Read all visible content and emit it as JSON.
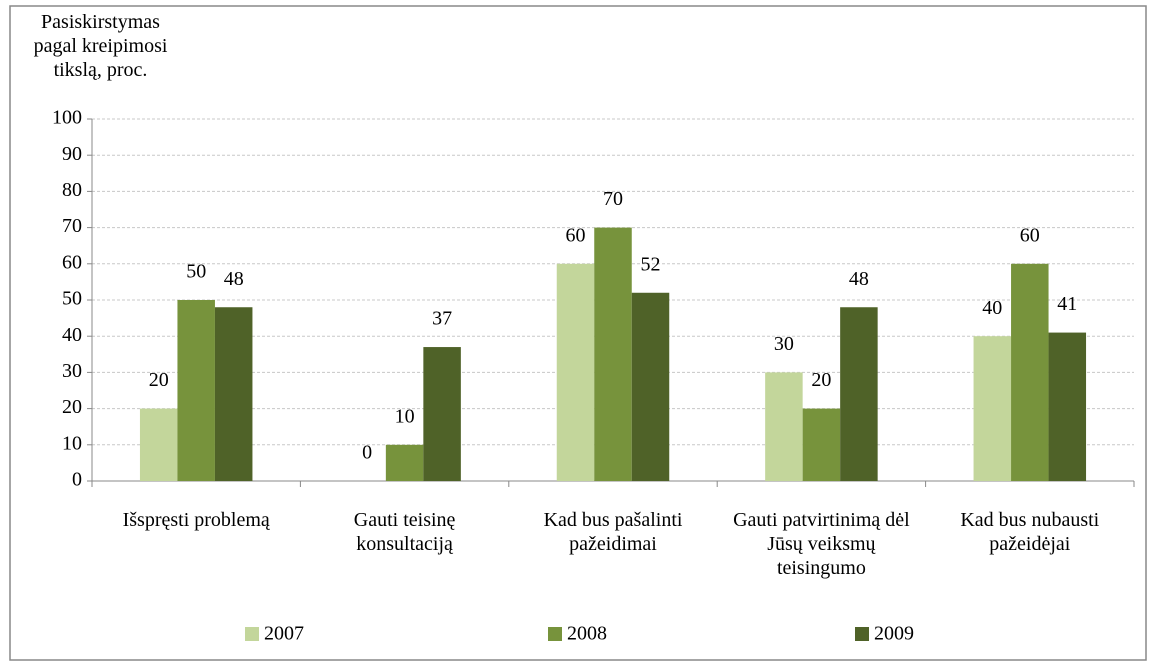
{
  "chart_data": {
    "type": "bar",
    "y_label": "Pasiskirstymas pagal kreipimosi tikslą, proc.",
    "categories": [
      "Išspręsti problemą",
      "Gauti teisinę konsultaciją",
      "Kad bus pašalinti pažeidimai",
      "Gauti patvirtinimą dėl Jūsų veiksmų teisingumo",
      "Kad bus nubausti pažeidėjai"
    ],
    "series": [
      {
        "name": "2007",
        "color": "#c3d69b",
        "values": [
          20,
          0,
          60,
          30,
          40
        ]
      },
      {
        "name": "2008",
        "color": "#77933c",
        "values": [
          50,
          10,
          70,
          20,
          60
        ]
      },
      {
        "name": "2009",
        "color": "#4f6228",
        "values": [
          48,
          37,
          52,
          48,
          41
        ]
      }
    ],
    "ylim": [
      0,
      100
    ],
    "yticks": [
      0,
      10,
      20,
      30,
      40,
      50,
      60,
      70,
      80,
      90,
      100
    ],
    "grid": true,
    "legend": "bottom"
  }
}
